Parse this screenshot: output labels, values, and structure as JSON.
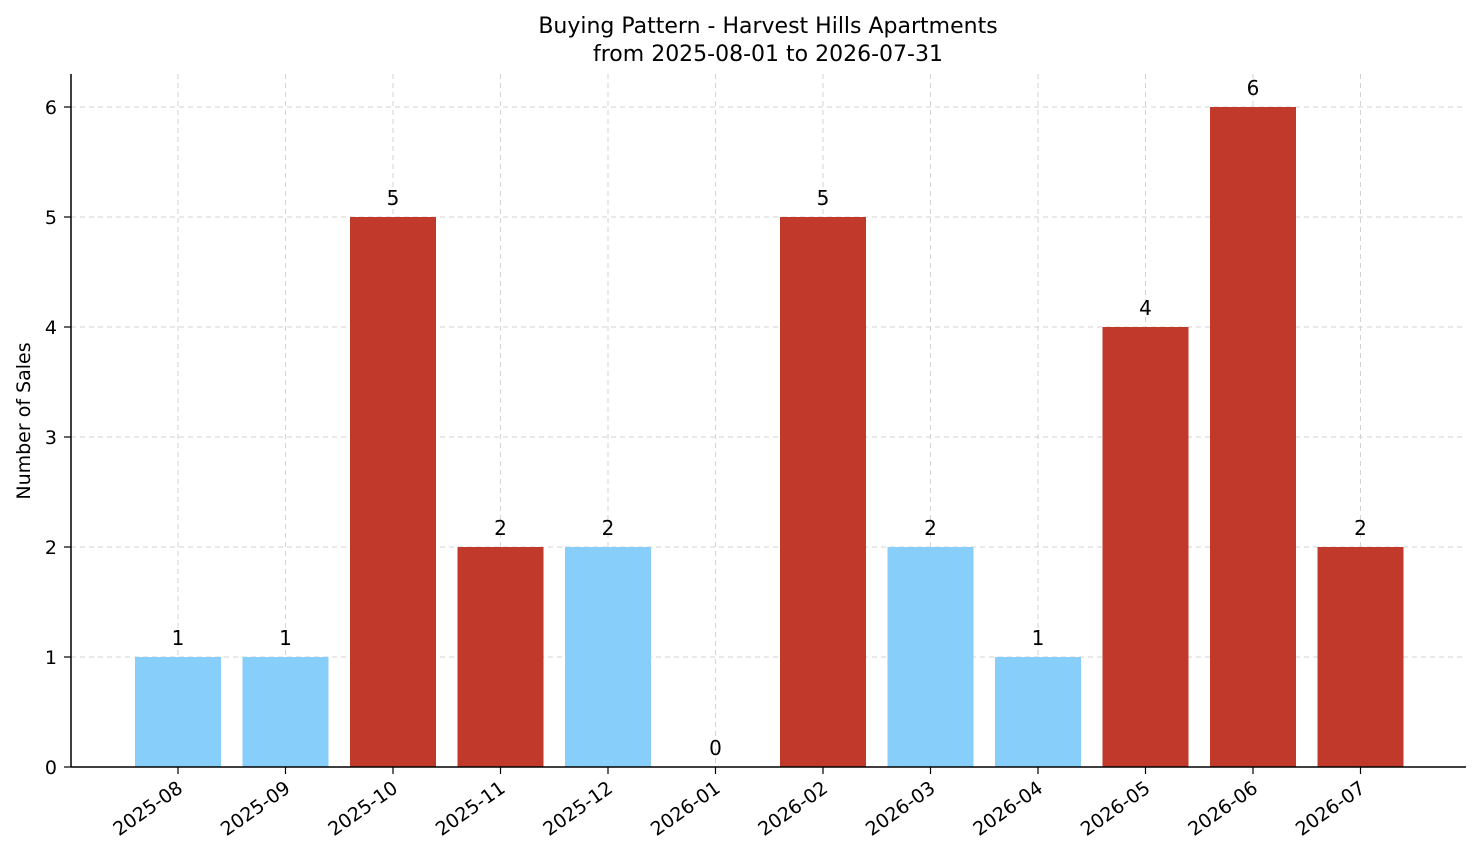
{
  "chart_data": {
    "type": "bar",
    "title": "Buying Pattern - Harvest Hills Apartments",
    "subtitle": "from 2025-08-01 to 2026-07-31",
    "xlabel": "",
    "ylabel": "Number of Sales",
    "categories": [
      "2025-08",
      "2025-09",
      "2025-10",
      "2025-11",
      "2025-12",
      "2026-01",
      "2026-02",
      "2026-03",
      "2026-04",
      "2026-05",
      "2026-06",
      "2026-07"
    ],
    "values": [
      1,
      1,
      5,
      2,
      2,
      0,
      5,
      2,
      1,
      4,
      6,
      2
    ],
    "bar_colors": [
      "#87CEFA",
      "#87CEFA",
      "#C0392B",
      "#C0392B",
      "#87CEFA",
      "#87CEFA",
      "#C0392B",
      "#87CEFA",
      "#87CEFA",
      "#C0392B",
      "#C0392B",
      "#C0392B"
    ],
    "yticks": [
      0,
      1,
      2,
      3,
      4,
      5,
      6
    ],
    "ylim": [
      0,
      6.3
    ],
    "grid": true,
    "data_labels": true
  }
}
